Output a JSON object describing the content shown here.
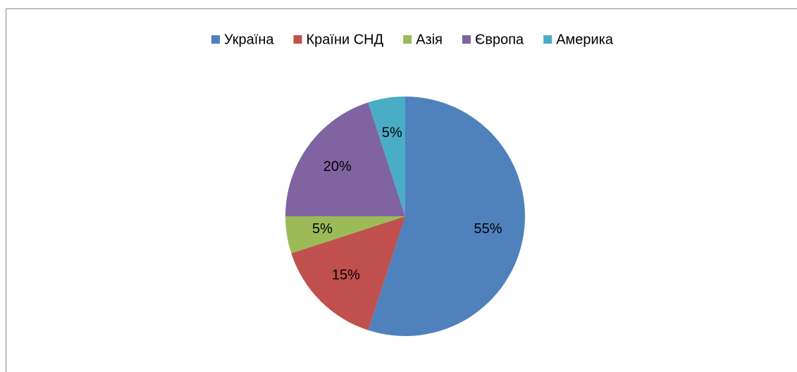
{
  "chart_data": {
    "type": "pie",
    "categories": [
      "Україна",
      "Країни СНД",
      "Азія",
      "Європа",
      "Америка"
    ],
    "values": [
      55,
      15,
      5,
      20,
      5
    ],
    "value_labels": [
      "55%",
      "15%",
      "5%",
      "20%",
      "5%"
    ],
    "colors": [
      "#4f81bd",
      "#c0504d",
      "#9bbb59",
      "#8064a2",
      "#4bacc6"
    ],
    "legend": "top"
  }
}
